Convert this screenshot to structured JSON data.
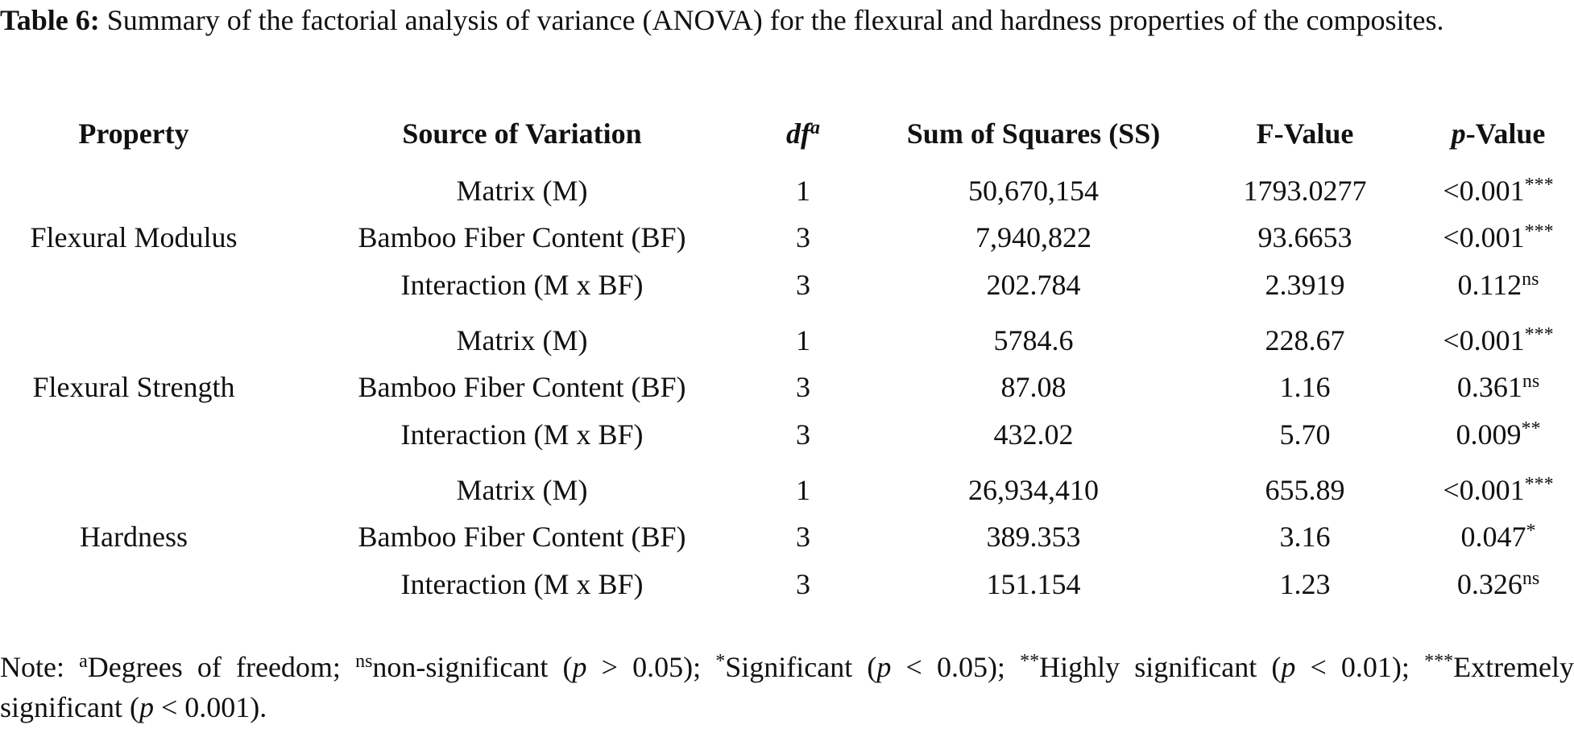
{
  "caption": {
    "label": "Table 6:",
    "text": "Summary of the factorial analysis of variance (ANOVA) for the flexural and hardness properties of the composites."
  },
  "table": {
    "headers": [
      {
        "text": "Property"
      },
      {
        "text": "Source of Variation"
      },
      {
        "italic": "df",
        "sup": "a"
      },
      {
        "text": "Sum of Squares (SS)"
      },
      {
        "text": "F-Value"
      },
      {
        "italic": "p",
        "text": "-Value"
      }
    ],
    "groups": [
      {
        "property": "Flexural Modulus",
        "rows": [
          {
            "source": "Matrix (M)",
            "df": "1",
            "ss": "50,670,154",
            "f": "1793.0277",
            "p": "<0.001",
            "sig": "***"
          },
          {
            "source": "Bamboo Fiber Content (BF)",
            "df": "3",
            "ss": "7,940,822",
            "f": "93.6653",
            "p": "<0.001",
            "sig": "***"
          },
          {
            "source": "Interaction (M x BF)",
            "df": "3",
            "ss": "202.784",
            "f": "2.3919",
            "p": "0.112",
            "sig": "ns"
          }
        ]
      },
      {
        "property": "Flexural Strength",
        "rows": [
          {
            "source": "Matrix (M)",
            "df": "1",
            "ss": "5784.6",
            "f": "228.67",
            "p": "<0.001",
            "sig": "***"
          },
          {
            "source": "Bamboo Fiber Content (BF)",
            "df": "3",
            "ss": "87.08",
            "f": "1.16",
            "p": "0.361",
            "sig": "ns"
          },
          {
            "source": "Interaction (M x BF)",
            "df": "3",
            "ss": "432.02",
            "f": "5.70",
            "p": "0.009",
            "sig": "**"
          }
        ]
      },
      {
        "property": "Hardness",
        "rows": [
          {
            "source": "Matrix (M)",
            "df": "1",
            "ss": "26,934,410",
            "f": "655.89",
            "p": "<0.001",
            "sig": "***"
          },
          {
            "source": "Bamboo Fiber Content (BF)",
            "df": "3",
            "ss": "389.353",
            "f": "3.16",
            "p": "0.047",
            "sig": "*"
          },
          {
            "source": "Interaction (M x BF)",
            "df": "3",
            "ss": "151.154",
            "f": "1.23",
            "p": "0.326",
            "sig": "ns"
          }
        ]
      }
    ]
  },
  "note": [
    {
      "text": "Note: "
    },
    {
      "sup": "a"
    },
    {
      "text": "Degrees of freedom; "
    },
    {
      "sup": "ns"
    },
    {
      "text": "non-significant ("
    },
    {
      "italic": "p"
    },
    {
      "text": " > 0.05); "
    },
    {
      "sup": "*"
    },
    {
      "text": "Significant ("
    },
    {
      "italic": "p"
    },
    {
      "text": " < 0.05); "
    },
    {
      "sup": "**"
    },
    {
      "text": "Highly significant ("
    },
    {
      "italic": "p"
    },
    {
      "text": " < 0.01); "
    },
    {
      "sup": "***"
    },
    {
      "text": "Extremely significant ("
    },
    {
      "italic": "p"
    },
    {
      "text": " < 0.001)."
    }
  ]
}
